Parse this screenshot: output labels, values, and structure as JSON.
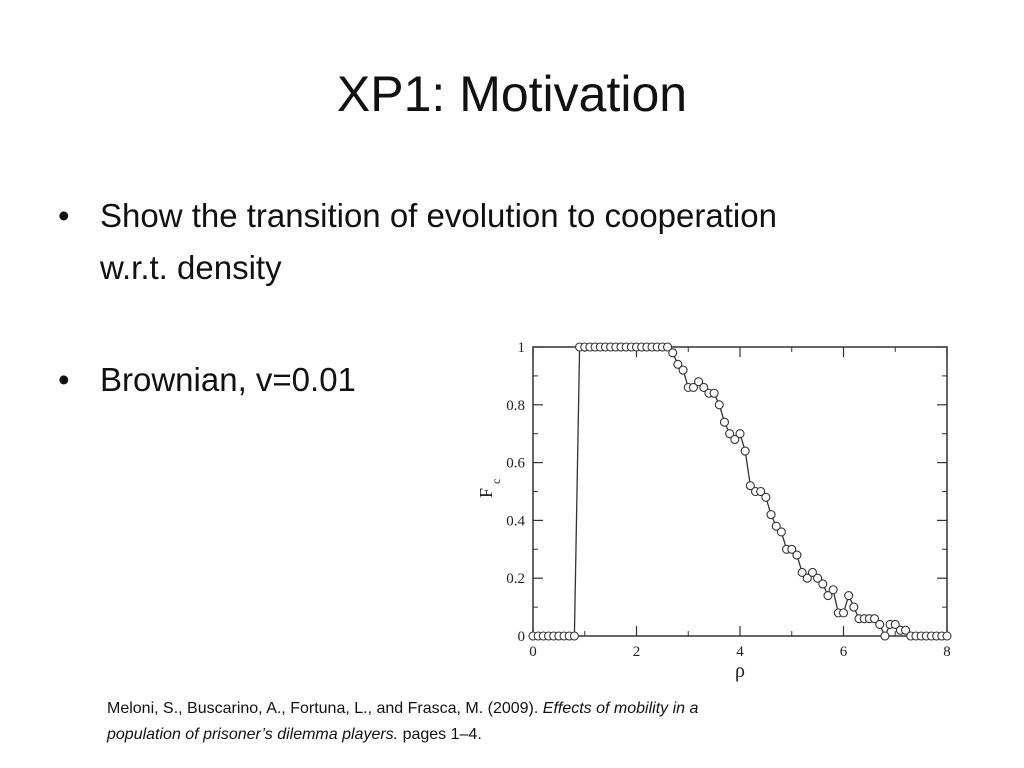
{
  "slide": {
    "title": "XP1: Motivation",
    "bullets": [
      "Show the transition of evolution to cooperation w.r.t. density",
      "Brownian, v=0.01"
    ],
    "citation": {
      "authors": "Meloni, S., Buscarino, A., Fortuna, L., and Frasca, M. (2009).",
      "title": "Effects of mobility in a population of prisoner’s dilemma players.",
      "pages": "pages 1–4."
    }
  },
  "chart_data": {
    "type": "line",
    "xlabel": "ρ",
    "ylabel": "F",
    "ylabel_sub": "c",
    "xlim": [
      0,
      8
    ],
    "ylim": [
      0,
      1
    ],
    "xticks": [
      0,
      2,
      4,
      6,
      8
    ],
    "yticks": [
      0,
      0.2,
      0.4,
      0.6,
      0.8,
      1
    ],
    "ytick_labels": [
      "0",
      "0.2",
      "0.4",
      "0.6",
      "0.8",
      "1"
    ],
    "marker": "open-circle",
    "series": [
      {
        "x": [
          0.0,
          0.1,
          0.2,
          0.3,
          0.4,
          0.5,
          0.6,
          0.7,
          0.8,
          0.9,
          1.0,
          1.1,
          1.2,
          1.3,
          1.4,
          1.5,
          1.6,
          1.7,
          1.8,
          1.9,
          2.0,
          2.1,
          2.2,
          2.3,
          2.4,
          2.5,
          2.6,
          2.7,
          2.8,
          2.9,
          3.0,
          3.1,
          3.2,
          3.3,
          3.4,
          3.5,
          3.6,
          3.7,
          3.8,
          3.9,
          4.0,
          4.1,
          4.2,
          4.3,
          4.4,
          4.5,
          4.6,
          4.7,
          4.8,
          4.9,
          5.0,
          5.1,
          5.2,
          5.3,
          5.4,
          5.5,
          5.6,
          5.7,
          5.8,
          5.9,
          6.0,
          6.1,
          6.2,
          6.3,
          6.4,
          6.5,
          6.6,
          6.7,
          6.8,
          6.9,
          7.0,
          7.1,
          7.2,
          7.3,
          7.4,
          7.5,
          7.6,
          7.7,
          7.8,
          7.9,
          8.0
        ],
        "y": [
          0,
          0,
          0,
          0,
          0,
          0,
          0,
          0,
          0,
          1,
          1,
          1,
          1,
          1,
          1,
          1,
          1,
          1,
          1,
          1,
          1,
          1,
          1,
          1,
          1,
          1,
          1,
          0.98,
          0.94,
          0.92,
          0.86,
          0.86,
          0.88,
          0.86,
          0.84,
          0.84,
          0.8,
          0.74,
          0.7,
          0.68,
          0.7,
          0.64,
          0.52,
          0.5,
          0.5,
          0.48,
          0.42,
          0.38,
          0.36,
          0.3,
          0.3,
          0.28,
          0.22,
          0.2,
          0.22,
          0.2,
          0.18,
          0.14,
          0.16,
          0.08,
          0.08,
          0.14,
          0.1,
          0.06,
          0.06,
          0.06,
          0.06,
          0.04,
          0.0,
          0.04,
          0.04,
          0.02,
          0.02,
          0.0,
          0.0,
          0.0,
          0.0,
          0.0,
          0.0,
          0.0,
          0.0
        ]
      }
    ]
  }
}
